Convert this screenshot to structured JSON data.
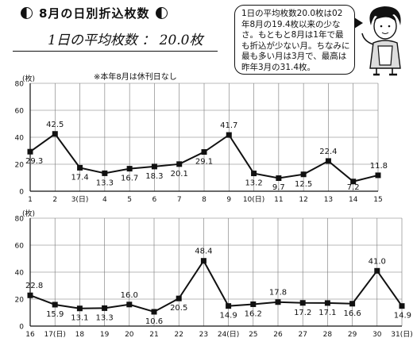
{
  "header": {
    "title": "8月の日別折込枚数",
    "average": "1日の平均枚数 ： 20.0枚",
    "note": "※本年8月は休刊日なし"
  },
  "bubble": {
    "text": "1日の平均枚数20.0枚は02年8月の19.4枚以来の少なさ。もともと8月は1年で最も折込が少ない月。ちなみに最も多い月は3月で、最高は昨年3月の31.4枚。"
  },
  "colors": {
    "line": "#111111",
    "grid": "#777777"
  },
  "chart_data": [
    {
      "type": "line",
      "ylabel": "(枚)",
      "ylim": [
        0,
        80
      ],
      "yticks": [
        "0",
        "20",
        "40",
        "60",
        "80"
      ],
      "categories": [
        "1",
        "2",
        "3(日)",
        "4",
        "5",
        "6",
        "7",
        "8",
        "9",
        "10(日)",
        "11",
        "12",
        "13",
        "14",
        "15"
      ],
      "values": [
        29.3,
        42.5,
        17.4,
        13.3,
        16.7,
        18.3,
        20.1,
        29.1,
        41.7,
        13.2,
        9.7,
        12.5,
        22.4,
        7.2,
        11.8
      ],
      "labels": [
        "29.3",
        "42.5",
        "17.4",
        "13.3",
        "16.7",
        "18.3",
        "20.1",
        "29.1",
        "41.7",
        "13.2",
        "9.7",
        "12.5",
        "22.4",
        "7.2",
        "11.8"
      ]
    },
    {
      "type": "line",
      "ylabel": "(枚)",
      "ylim": [
        0,
        80
      ],
      "yticks": [
        "0",
        "20",
        "40",
        "60",
        "80"
      ],
      "categories": [
        "16",
        "17(日)",
        "18",
        "19",
        "20",
        "21",
        "22",
        "23",
        "24(日)",
        "25",
        "26",
        "27",
        "28",
        "29",
        "30",
        "31(日)"
      ],
      "values": [
        22.8,
        15.9,
        13.1,
        13.3,
        16.0,
        10.6,
        20.5,
        48.4,
        14.9,
        16.2,
        17.8,
        17.2,
        17.1,
        16.6,
        41.0,
        14.9
      ],
      "labels": [
        "22.8",
        "15.9",
        "13.1",
        "13.3",
        "16.0",
        "10.6",
        "20.5",
        "48.4",
        "14.9",
        "16.2",
        "17.8",
        "17.2",
        "17.1",
        "16.6",
        "41.0",
        "14.9"
      ]
    }
  ]
}
